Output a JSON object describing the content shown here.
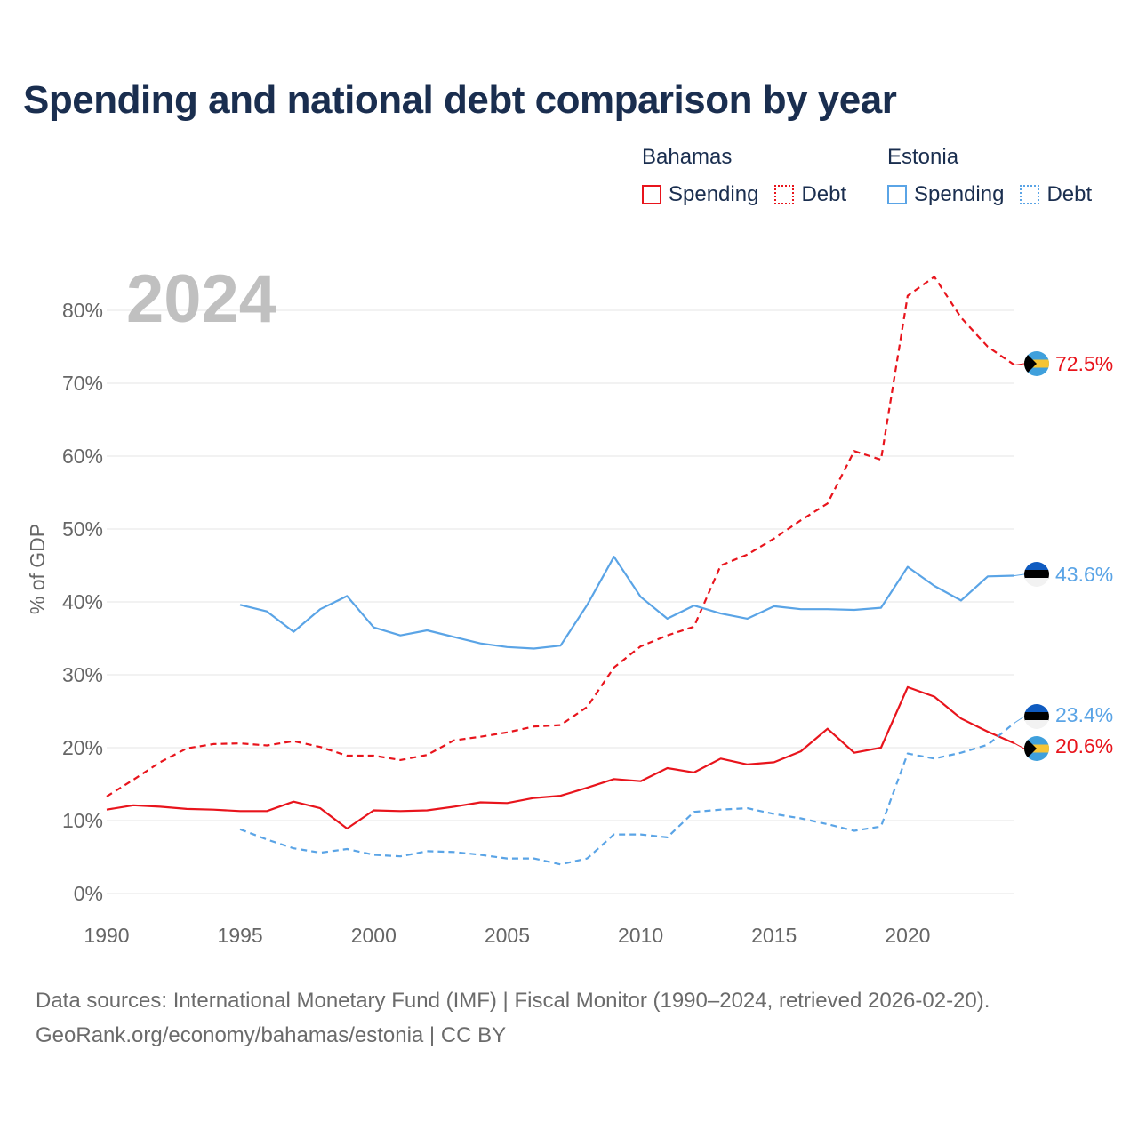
{
  "title": "Spending and national debt comparison by year",
  "legend": {
    "groups": [
      {
        "name": "Bahamas",
        "items": [
          {
            "label": "Spending",
            "style": "solid",
            "color": "#e8141c"
          },
          {
            "label": "Debt",
            "style": "dotted",
            "color": "#e8141c"
          }
        ]
      },
      {
        "name": "Estonia",
        "items": [
          {
            "label": "Spending",
            "style": "solid",
            "color": "#5aa4e6"
          },
          {
            "label": "Debt",
            "style": "dotted",
            "color": "#5aa4e6"
          }
        ]
      }
    ]
  },
  "source": {
    "line1": "Data sources: International Monetary Fund (IMF) | Fiscal Monitor (1990–2024, retrieved 2026-02-20).",
    "line2": "GeoRank.org/economy/bahamas/estonia | CC BY"
  },
  "colors": {
    "bahamas": "#e8141c",
    "estonia": "#5aa4e6",
    "title": "#1a2e4f",
    "axis_text": "#666666",
    "year_watermark": "#c0c0c0"
  },
  "chart_data": {
    "type": "line",
    "year_label": "2024",
    "ylabel": "% of GDP",
    "xlim": [
      1990,
      2024
    ],
    "ylim": [
      0,
      85
    ],
    "xticks": [
      1990,
      1995,
      2000,
      2005,
      2010,
      2015,
      2020
    ],
    "xtick_labels": [
      "1990",
      "1995",
      "2000",
      "2005",
      "2010",
      "2015",
      "2020"
    ],
    "yticks": [
      0,
      10,
      20,
      30,
      40,
      50,
      60,
      70,
      80
    ],
    "ytick_labels": [
      "0%",
      "10%",
      "20%",
      "30%",
      "40%",
      "50%",
      "60%",
      "70%",
      "80%"
    ],
    "series": [
      {
        "name": "Bahamas Spending",
        "country": "bahamas",
        "dashed": false,
        "x": [
          1990,
          1991,
          1992,
          1993,
          1994,
          1995,
          1996,
          1997,
          1998,
          1999,
          2000,
          2001,
          2002,
          2003,
          2004,
          2005,
          2006,
          2007,
          2008,
          2009,
          2010,
          2011,
          2012,
          2013,
          2014,
          2015,
          2016,
          2017,
          2018,
          2019,
          2020,
          2021,
          2022,
          2023,
          2024
        ],
        "values": [
          11.5,
          12.1,
          11.9,
          11.6,
          11.5,
          11.3,
          11.3,
          12.6,
          11.7,
          8.9,
          11.4,
          11.3,
          11.4,
          11.9,
          12.5,
          12.4,
          13.1,
          13.4,
          14.5,
          15.7,
          15.4,
          17.2,
          16.6,
          18.5,
          17.7,
          18.0,
          19.5,
          22.6,
          19.3,
          20.0,
          28.3,
          27.0,
          24.0,
          22.2,
          20.6
        ],
        "end_label": "20.6%"
      },
      {
        "name": "Bahamas Debt",
        "country": "bahamas",
        "dashed": true,
        "x": [
          1990,
          1991,
          1992,
          1993,
          1994,
          1995,
          1996,
          1997,
          1998,
          1999,
          2000,
          2001,
          2002,
          2003,
          2004,
          2005,
          2006,
          2007,
          2008,
          2009,
          2010,
          2011,
          2012,
          2013,
          2014,
          2015,
          2016,
          2017,
          2018,
          2019,
          2020,
          2021,
          2022,
          2023,
          2024
        ],
        "values": [
          13.3,
          15.6,
          18.0,
          19.9,
          20.5,
          20.6,
          20.3,
          20.9,
          20.1,
          18.9,
          18.9,
          18.3,
          19.0,
          21.0,
          21.5,
          22.1,
          22.9,
          23.1,
          25.6,
          31.0,
          33.9,
          35.4,
          36.6,
          45.0,
          46.5,
          48.7,
          51.2,
          53.5,
          60.7,
          59.5,
          82.0,
          84.6,
          79.0,
          75.0,
          72.5
        ],
        "end_label": "72.5%"
      },
      {
        "name": "Estonia Spending",
        "country": "estonia",
        "dashed": false,
        "x": [
          1995,
          1996,
          1997,
          1998,
          1999,
          2000,
          2001,
          2002,
          2003,
          2004,
          2005,
          2006,
          2007,
          2008,
          2009,
          2010,
          2011,
          2012,
          2013,
          2014,
          2015,
          2016,
          2017,
          2018,
          2019,
          2020,
          2021,
          2022,
          2023,
          2024
        ],
        "values": [
          39.6,
          38.7,
          35.9,
          39.0,
          40.8,
          36.5,
          35.4,
          36.1,
          35.2,
          34.3,
          33.8,
          33.6,
          34.0,
          39.6,
          46.2,
          40.7,
          37.7,
          39.5,
          38.4,
          37.7,
          39.4,
          39.0,
          39.0,
          38.9,
          39.2,
          44.8,
          42.2,
          40.2,
          43.5,
          43.6
        ],
        "end_label": "43.6%"
      },
      {
        "name": "Estonia Debt",
        "country": "estonia",
        "dashed": true,
        "x": [
          1995,
          1996,
          1997,
          1998,
          1999,
          2000,
          2001,
          2002,
          2003,
          2004,
          2005,
          2006,
          2007,
          2008,
          2009,
          2010,
          2011,
          2012,
          2013,
          2014,
          2015,
          2016,
          2017,
          2018,
          2019,
          2020,
          2021,
          2022,
          2023,
          2024
        ],
        "values": [
          8.8,
          7.4,
          6.2,
          5.6,
          6.1,
          5.3,
          5.1,
          5.8,
          5.7,
          5.3,
          4.8,
          4.8,
          4.0,
          4.8,
          8.1,
          8.1,
          7.7,
          11.2,
          11.5,
          11.7,
          10.9,
          10.3,
          9.5,
          8.6,
          9.2,
          19.2,
          18.5,
          19.3,
          20.4,
          23.4
        ],
        "end_label": "23.4%"
      }
    ]
  }
}
